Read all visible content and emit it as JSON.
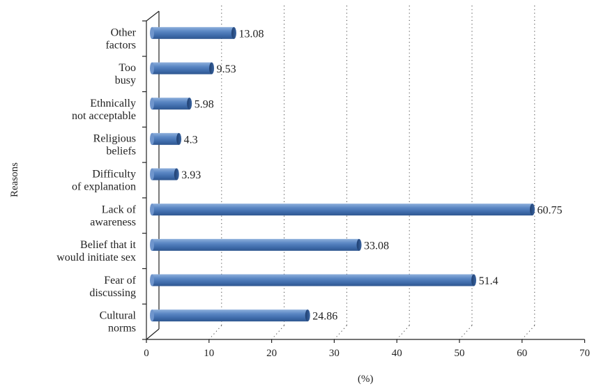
{
  "chart_data": {
    "type": "bar",
    "orientation": "horizontal",
    "categories": [
      "Cultural\nnorms",
      "Fear of\ndiscussing",
      "Belief that it\nwould initiate sex",
      "Lack of\nawareness",
      "Difficulty\nof explanation",
      "Religious\nbeliefs",
      "Ethnically\nnot acceptable",
      "Too\nbusy",
      "Other\nfactors"
    ],
    "values": [
      24.86,
      51.4,
      33.08,
      60.75,
      3.93,
      4.3,
      5.98,
      9.53,
      13.08
    ],
    "value_labels": [
      "24.86",
      "51.4",
      "33.08",
      "60.75",
      "3.93",
      "4.3",
      "5.98",
      "9.53",
      "13.08"
    ],
    "xlabel": "(%)",
    "ylabel": "Reasons",
    "xlim": [
      0,
      70
    ],
    "xticks": [
      "0",
      "10",
      "20",
      "30",
      "40",
      "50",
      "60",
      "70"
    ],
    "grid": "vertical dotted",
    "bar_color": "#4f81bd",
    "style": "3D cylinder bars"
  }
}
